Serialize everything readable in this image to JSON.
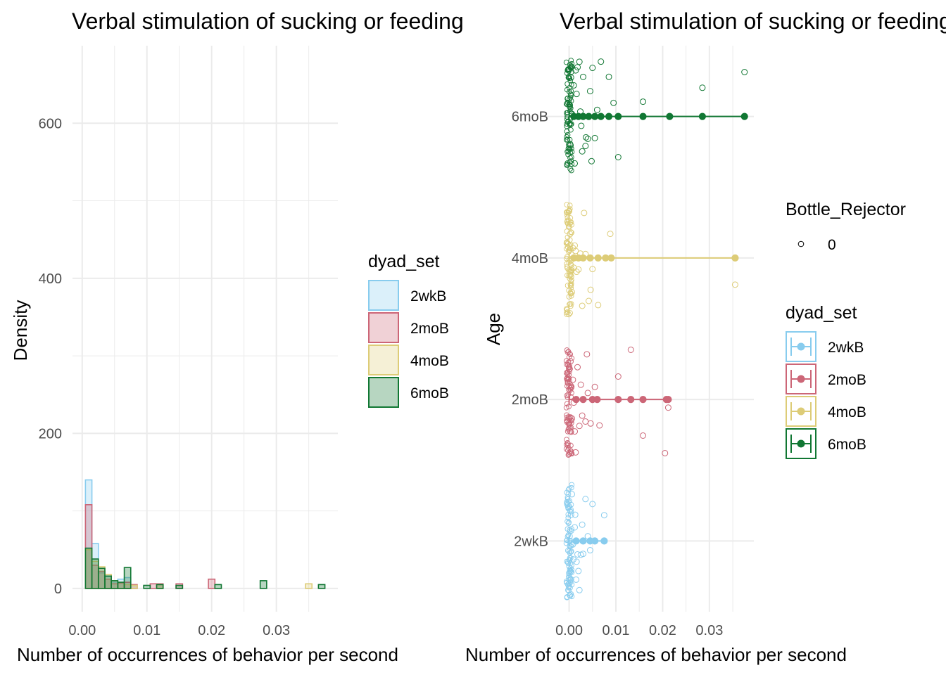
{
  "colors": {
    "2wkB": "#88CCEE",
    "2moB": "#CC6677",
    "4moB": "#DDCC77",
    "6moB": "#117733",
    "grid": "#ebebeb",
    "tick_text": "#4d4d4d"
  },
  "chart_data": [
    {
      "type": "bar",
      "subtype": "histogram",
      "title": "Verbal stimulation of sucking or feeding",
      "xlabel": "Number of occurrences of behavior per second",
      "ylabel": "Density",
      "xlim": [
        -0.0015,
        0.0395
      ],
      "ylim": [
        -30,
        700
      ],
      "x_ticks": [
        0.0,
        0.01,
        0.02,
        0.03
      ],
      "x_tick_labels": [
        "0.00",
        "0.01",
        "0.02",
        "0.03"
      ],
      "y_ticks": [
        0,
        200,
        400,
        600
      ],
      "y_tick_labels": [
        "0",
        "200",
        "400",
        "600"
      ],
      "grid": true,
      "legend_position": "right",
      "legend_title": "dyad_set",
      "bin_width": 0.001,
      "bins_start": [
        0.0005,
        0.0015,
        0.0025,
        0.0035,
        0.0045,
        0.0055,
        0.0065,
        0.0075,
        0.0085,
        0.0095,
        0.0105,
        0.0115,
        0.0125,
        0.0135,
        0.0145,
        0.0155,
        0.0165,
        0.0175,
        0.0185,
        0.0195,
        0.0205,
        0.0215,
        0.0225,
        0.0235,
        0.0245,
        0.0255,
        0.0265,
        0.0275,
        0.0285,
        0.0295,
        0.0305,
        0.0315,
        0.0325,
        0.0335,
        0.0345,
        0.0355,
        0.0365,
        0.0375
      ],
      "series": [
        {
          "name": "2wkB",
          "values": [
            140,
            58,
            20,
            15,
            8,
            12,
            14,
            4,
            0,
            0,
            0,
            0,
            0,
            0,
            0,
            0,
            0,
            0,
            0,
            0,
            0,
            0,
            0,
            0,
            0,
            0,
            0,
            0,
            0,
            0,
            0,
            0,
            0,
            0,
            0,
            0,
            0,
            0
          ]
        },
        {
          "name": "2moB",
          "values": [
            108,
            30,
            22,
            12,
            6,
            7,
            8,
            5,
            0,
            0,
            6,
            6,
            0,
            0,
            6,
            0,
            0,
            0,
            0,
            12,
            0,
            0,
            0,
            0,
            0,
            0,
            0,
            0,
            0,
            0,
            0,
            0,
            0,
            0,
            0,
            0,
            0,
            0
          ]
        },
        {
          "name": "4moB",
          "values": [
            50,
            35,
            28,
            18,
            10,
            8,
            5,
            4,
            0,
            0,
            0,
            5,
            0,
            0,
            0,
            0,
            0,
            0,
            0,
            0,
            0,
            0,
            0,
            0,
            0,
            0,
            0,
            0,
            0,
            0,
            0,
            0,
            0,
            0,
            6,
            0,
            0,
            0
          ]
        },
        {
          "name": "6moB",
          "values": [
            52,
            38,
            26,
            16,
            10,
            8,
            27,
            0,
            0,
            4,
            0,
            5,
            0,
            0,
            4,
            0,
            0,
            0,
            0,
            0,
            5,
            0,
            0,
            0,
            0,
            0,
            0,
            10,
            0,
            0,
            0,
            0,
            0,
            0,
            0,
            0,
            5,
            0
          ]
        }
      ]
    },
    {
      "type": "scatter",
      "subtype": "jitter-with-range",
      "title": "Verbal stimulation of sucking or feeding",
      "xlabel": "Number of occurrences of behavior per second",
      "ylabel": "Age",
      "xlim": [
        -0.0055,
        0.0395
      ],
      "x_ticks": [
        0.0,
        0.01,
        0.02,
        0.03
      ],
      "x_tick_labels": [
        "0.00",
        "0.01",
        "0.02",
        "0.03"
      ],
      "categories": [
        "2wkB",
        "2moB",
        "4moB",
        "6moB"
      ],
      "grid": true,
      "legend_position": "right",
      "legend_titles": [
        "Bottle_Rejector",
        "dyad_set"
      ],
      "bottle_rejector_levels": [
        "0"
      ],
      "series": [
        {
          "name": "2wkB",
          "range": [
            0.0,
            0.0075
          ],
          "summary_points": [
            0.0015,
            0.003,
            0.0045,
            0.0055,
            0.0075
          ],
          "jitter_x": [
            0.0,
            0.0002,
            0.0004,
            0.0006,
            0.0008,
            0.0012,
            0.0016,
            0.002,
            0.0025,
            0.003,
            0.0035,
            0.004,
            0.0045,
            0.005,
            0.0075,
            0.0022,
            0.0018,
            0.0009,
            0.0015,
            0.0028,
            0.0004,
            0.0001,
            0.0013
          ]
        },
        {
          "name": "2moB",
          "range": [
            0.0,
            0.0212
          ],
          "summary_points": [
            0.0015,
            0.003,
            0.005,
            0.006,
            0.0105,
            0.0132,
            0.0158,
            0.0208,
            0.0212
          ],
          "jitter_x": [
            0.0,
            0.0003,
            0.0006,
            0.001,
            0.0014,
            0.0018,
            0.0022,
            0.0028,
            0.0035,
            0.004,
            0.0046,
            0.0055,
            0.0065,
            0.0105,
            0.0132,
            0.0158,
            0.0205,
            0.0212,
            0.0008,
            0.0012,
            0.0025,
            0.0002,
            0.0038
          ]
        },
        {
          "name": "4moB",
          "range": [
            0.0,
            0.0355
          ],
          "summary_points": [
            0.001,
            0.002,
            0.003,
            0.0045,
            0.0062,
            0.0078,
            0.009,
            0.0355
          ],
          "jitter_x": [
            0.0,
            0.0004,
            0.0008,
            0.0012,
            0.0016,
            0.002,
            0.0028,
            0.0035,
            0.0042,
            0.005,
            0.0062,
            0.0088,
            0.0355,
            0.001,
            0.0024,
            0.0006,
            0.0032,
            0.0002,
            0.0014,
            0.0046
          ]
        },
        {
          "name": "6moB",
          "range": [
            0.0,
            0.0375
          ],
          "summary_points": [
            0.001,
            0.002,
            0.003,
            0.0042,
            0.0055,
            0.0068,
            0.0085,
            0.0105,
            0.0158,
            0.0215,
            0.0285,
            0.0375
          ],
          "jitter_x": [
            0.0,
            0.0003,
            0.0006,
            0.001,
            0.0014,
            0.0018,
            0.0022,
            0.0026,
            0.003,
            0.0035,
            0.004,
            0.0045,
            0.005,
            0.0055,
            0.006,
            0.0068,
            0.0085,
            0.0095,
            0.0105,
            0.0158,
            0.0285,
            0.0375,
            0.0012,
            0.0024,
            0.0036,
            0.0048,
            0.0004,
            0.0016,
            0.0028,
            0.0002
          ]
        }
      ]
    }
  ],
  "legend_histogram": {
    "title": "dyad_set",
    "entries": [
      "2wkB",
      "2moB",
      "4moB",
      "6moB"
    ]
  },
  "legend_bottle": {
    "title": "Bottle_Rejector",
    "entries": [
      "0"
    ]
  },
  "legend_dyad": {
    "title": "dyad_set",
    "entries": [
      "2wkB",
      "2moB",
      "4moB",
      "6moB"
    ]
  },
  "left": {
    "title": "Verbal stimulation of sucking or feeding",
    "xlabel": "Number of occurrences of behavior per second",
    "ylabel": "Density"
  },
  "right": {
    "title": "Verbal stimulation of sucking or feeding",
    "xlabel": "Number of occurrences of behavior per second",
    "ylabel": "Age"
  }
}
